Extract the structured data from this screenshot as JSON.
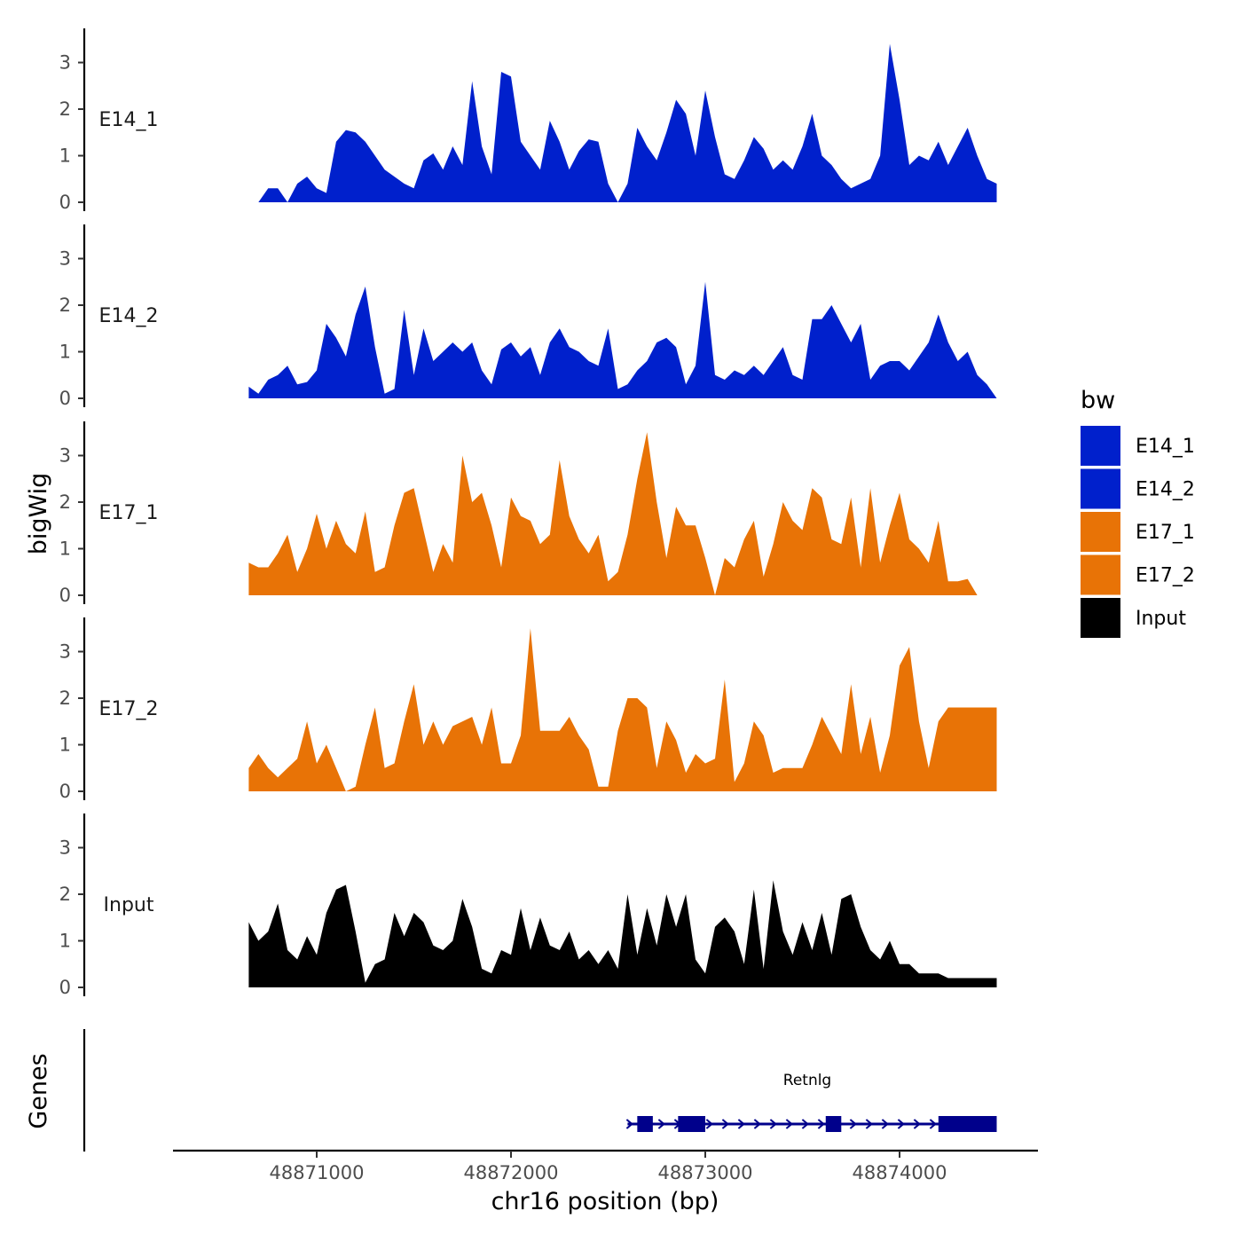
{
  "chart_data": {
    "type": "area",
    "ylabel": "bigWig",
    "xlabel": "chr16 position (bp)",
    "xlim": [
      48870400,
      48874700
    ],
    "ylim": [
      0,
      3.6
    ],
    "y_ticks": [
      "0",
      "1",
      "2",
      "3"
    ],
    "x_ticks": [
      "48871000",
      "48872000",
      "48873000",
      "48874000"
    ],
    "legend_title": "bw",
    "legend_position": "right",
    "tracks": [
      {
        "name": "E14_1",
        "color": "#0020CC",
        "x": [
          48870700,
          48870750,
          48870800,
          48870850,
          48870900,
          48870950,
          48871000,
          48871050,
          48871100,
          48871150,
          48871200,
          48871250,
          48871300,
          48871350,
          48871400,
          48871450,
          48871500,
          48871550,
          48871600,
          48871650,
          48871700,
          48871750,
          48871800,
          48871850,
          48871900,
          48871950,
          48872000,
          48872050,
          48872100,
          48872150,
          48872200,
          48872250,
          48872300,
          48872350,
          48872400,
          48872450,
          48872500,
          48872550,
          48872600,
          48872650,
          48872700,
          48872750,
          48872800,
          48872850,
          48872900,
          48872950,
          48873000,
          48873050,
          48873100,
          48873150,
          48873200,
          48873250,
          48873300,
          48873350,
          48873400,
          48873450,
          48873500,
          48873550,
          48873600,
          48873650,
          48873700,
          48873750,
          48873800,
          48873850,
          48873900,
          48873950,
          48874000,
          48874050,
          48874100,
          48874150,
          48874200,
          48874250,
          48874300,
          48874350,
          48874400,
          48874450,
          48874500
        ],
        "values": [
          0.0,
          0.3,
          0.3,
          0.0,
          0.4,
          0.55,
          0.3,
          0.2,
          1.3,
          1.55,
          1.5,
          1.3,
          1.0,
          0.7,
          0.55,
          0.4,
          0.3,
          0.9,
          1.05,
          0.7,
          1.2,
          0.8,
          2.6,
          1.2,
          0.6,
          2.8,
          2.7,
          1.3,
          1.0,
          0.7,
          1.75,
          1.3,
          0.7,
          1.1,
          1.35,
          1.3,
          0.4,
          0.0,
          0.4,
          1.6,
          1.2,
          0.9,
          1.5,
          2.2,
          1.9,
          1.0,
          2.4,
          1.4,
          0.6,
          0.5,
          0.9,
          1.4,
          1.15,
          0.7,
          0.9,
          0.7,
          1.2,
          1.9,
          1.0,
          0.8,
          0.5,
          0.3,
          0.4,
          0.5,
          1.0,
          3.4,
          2.2,
          0.8,
          1.0,
          0.9,
          1.3,
          0.8,
          1.2,
          1.6,
          1.0,
          0.5,
          0.4
        ]
      },
      {
        "name": "E14_2",
        "color": "#0020CC",
        "x": [
          48870650,
          48870700,
          48870750,
          48870800,
          48870850,
          48870900,
          48870950,
          48871000,
          48871050,
          48871100,
          48871150,
          48871200,
          48871250,
          48871300,
          48871350,
          48871400,
          48871450,
          48871500,
          48871550,
          48871600,
          48871650,
          48871700,
          48871750,
          48871800,
          48871850,
          48871900,
          48871950,
          48872000,
          48872050,
          48872100,
          48872150,
          48872200,
          48872250,
          48872300,
          48872350,
          48872400,
          48872450,
          48872500,
          48872550,
          48872600,
          48872650,
          48872700,
          48872750,
          48872800,
          48872850,
          48872900,
          48872950,
          48873000,
          48873050,
          48873100,
          48873150,
          48873200,
          48873250,
          48873300,
          48873350,
          48873400,
          48873450,
          48873500,
          48873550,
          48873600,
          48873650,
          48873700,
          48873750,
          48873800,
          48873850,
          48873900,
          48873950,
          48874000,
          48874050,
          48874100,
          48874150,
          48874200,
          48874250,
          48874300,
          48874350,
          48874400,
          48874450,
          48874500
        ],
        "values": [
          0.25,
          0.1,
          0.4,
          0.5,
          0.7,
          0.3,
          0.35,
          0.6,
          1.6,
          1.3,
          0.9,
          1.8,
          2.4,
          1.1,
          0.1,
          0.2,
          1.9,
          0.5,
          1.5,
          0.8,
          1.0,
          1.2,
          1.0,
          1.2,
          0.6,
          0.3,
          1.05,
          1.2,
          0.9,
          1.1,
          0.5,
          1.2,
          1.5,
          1.1,
          1.0,
          0.8,
          0.7,
          1.5,
          0.2,
          0.3,
          0.6,
          0.8,
          1.2,
          1.3,
          1.1,
          0.3,
          0.7,
          2.5,
          0.5,
          0.4,
          0.6,
          0.5,
          0.7,
          0.5,
          0.8,
          1.1,
          0.5,
          0.4,
          1.7,
          1.7,
          2.0,
          1.6,
          1.2,
          1.6,
          0.4,
          0.7,
          0.8,
          0.8,
          0.6,
          0.9,
          1.2,
          1.8,
          1.2,
          0.8,
          1.0,
          0.5,
          0.3,
          0.0
        ]
      },
      {
        "name": "E17_1",
        "color": "#E87306",
        "x": [
          48870650,
          48870700,
          48870750,
          48870800,
          48870850,
          48870900,
          48870950,
          48871000,
          48871050,
          48871100,
          48871150,
          48871200,
          48871250,
          48871300,
          48871350,
          48871400,
          48871450,
          48871500,
          48871550,
          48871600,
          48871650,
          48871700,
          48871750,
          48871800,
          48871850,
          48871900,
          48871950,
          48872000,
          48872050,
          48872100,
          48872150,
          48872200,
          48872250,
          48872300,
          48872350,
          48872400,
          48872450,
          48872500,
          48872550,
          48872600,
          48872650,
          48872700,
          48872750,
          48872800,
          48872850,
          48872900,
          48872950,
          48873000,
          48873050,
          48873100,
          48873150,
          48873200,
          48873250,
          48873300,
          48873350,
          48873400,
          48873450,
          48873500,
          48873550,
          48873600,
          48873650,
          48873700,
          48873750,
          48873800,
          48873850,
          48873900,
          48873950,
          48874000,
          48874050,
          48874100,
          48874150,
          48874200,
          48874250,
          48874300,
          48874350,
          48874400,
          48874450,
          48874500
        ],
        "values": [
          0.7,
          0.6,
          0.6,
          0.9,
          1.3,
          0.5,
          1.0,
          1.75,
          1.0,
          1.6,
          1.1,
          0.9,
          1.8,
          0.5,
          0.6,
          1.5,
          2.2,
          2.3,
          1.4,
          0.5,
          1.1,
          0.7,
          3.0,
          2.0,
          2.2,
          1.5,
          0.6,
          2.1,
          1.7,
          1.6,
          1.1,
          1.3,
          2.9,
          1.7,
          1.2,
          0.9,
          1.3,
          0.3,
          0.5,
          1.3,
          2.5,
          3.5,
          2.0,
          0.8,
          1.9,
          1.5,
          1.5,
          0.8,
          0.0,
          0.8,
          0.6,
          1.2,
          1.6,
          0.4,
          1.1,
          2.0,
          1.6,
          1.4,
          2.3,
          2.1,
          1.2,
          1.1,
          2.1,
          0.6,
          2.3,
          0.7,
          1.5,
          2.2,
          1.2,
          1.0,
          0.7,
          1.6,
          0.3,
          0.3,
          0.35,
          0.0,
          0.0,
          0.0
        ]
      },
      {
        "name": "E17_2",
        "color": "#E87306",
        "x": [
          48870650,
          48870700,
          48870750,
          48870800,
          48870850,
          48870900,
          48870950,
          48871000,
          48871050,
          48871100,
          48871150,
          48871200,
          48871250,
          48871300,
          48871350,
          48871400,
          48871450,
          48871500,
          48871550,
          48871600,
          48871650,
          48871700,
          48871750,
          48871800,
          48871850,
          48871900,
          48871950,
          48872000,
          48872050,
          48872100,
          48872150,
          48872200,
          48872250,
          48872300,
          48872350,
          48872400,
          48872450,
          48872500,
          48872550,
          48872600,
          48872650,
          48872700,
          48872750,
          48872800,
          48872850,
          48872900,
          48872950,
          48873000,
          48873050,
          48873100,
          48873150,
          48873200,
          48873250,
          48873300,
          48873350,
          48873400,
          48873450,
          48873500,
          48873550,
          48873600,
          48873650,
          48873700,
          48873750,
          48873800,
          48873850,
          48873900,
          48873950,
          48874000,
          48874050,
          48874100,
          48874150,
          48874200,
          48874250,
          48874300,
          48874350,
          48874400,
          48874450,
          48874500
        ],
        "values": [
          0.5,
          0.8,
          0.5,
          0.3,
          0.5,
          0.7,
          1.5,
          0.6,
          1.0,
          0.5,
          0.0,
          0.1,
          1.0,
          1.8,
          0.5,
          0.6,
          1.5,
          2.3,
          1.0,
          1.5,
          1.0,
          1.4,
          1.5,
          1.6,
          1.0,
          1.8,
          0.6,
          0.6,
          1.2,
          3.5,
          1.3,
          1.3,
          1.3,
          1.6,
          1.2,
          0.9,
          0.1,
          0.1,
          1.3,
          2.0,
          2.0,
          1.8,
          0.5,
          1.5,
          1.1,
          0.4,
          0.8,
          0.6,
          0.7,
          2.4,
          0.2,
          0.6,
          1.5,
          1.2,
          0.4,
          0.5,
          0.5,
          0.5,
          1.0,
          1.6,
          1.2,
          0.8,
          2.3,
          0.8,
          1.6,
          0.4,
          1.2,
          2.7,
          3.1,
          1.5,
          0.5,
          1.5,
          1.8,
          1.8,
          1.8,
          1.8,
          1.8,
          1.8
        ]
      },
      {
        "name": "Input",
        "color": "#000000",
        "x": [
          48870650,
          48870700,
          48870750,
          48870800,
          48870850,
          48870900,
          48870950,
          48871000,
          48871050,
          48871100,
          48871150,
          48871200,
          48871250,
          48871300,
          48871350,
          48871400,
          48871450,
          48871500,
          48871550,
          48871600,
          48871650,
          48871700,
          48871750,
          48871800,
          48871850,
          48871900,
          48871950,
          48872000,
          48872050,
          48872100,
          48872150,
          48872200,
          48872250,
          48872300,
          48872350,
          48872400,
          48872450,
          48872500,
          48872550,
          48872600,
          48872650,
          48872700,
          48872750,
          48872800,
          48872850,
          48872900,
          48872950,
          48873000,
          48873050,
          48873100,
          48873150,
          48873200,
          48873250,
          48873300,
          48873350,
          48873400,
          48873450,
          48873500,
          48873550,
          48873600,
          48873650,
          48873700,
          48873750,
          48873800,
          48873850,
          48873900,
          48873950,
          48874000,
          48874050,
          48874100,
          48874150,
          48874200,
          48874250,
          48874300,
          48874350,
          48874400,
          48874450,
          48874500
        ],
        "values": [
          1.4,
          1.0,
          1.2,
          1.8,
          0.8,
          0.6,
          1.1,
          0.7,
          1.6,
          2.1,
          2.2,
          1.2,
          0.1,
          0.5,
          0.6,
          1.6,
          1.1,
          1.6,
          1.4,
          0.9,
          0.8,
          1.0,
          1.9,
          1.3,
          0.4,
          0.3,
          0.8,
          0.7,
          1.7,
          0.8,
          1.5,
          0.9,
          0.8,
          1.2,
          0.6,
          0.8,
          0.5,
          0.8,
          0.4,
          2.0,
          0.7,
          1.7,
          0.9,
          2.0,
          1.3,
          2.0,
          0.6,
          0.3,
          1.3,
          1.5,
          1.2,
          0.5,
          2.1,
          0.4,
          2.3,
          1.2,
          0.7,
          1.4,
          0.8,
          1.6,
          0.7,
          1.9,
          2.0,
          1.3,
          0.8,
          0.6,
          1.0,
          0.5,
          0.5,
          0.3,
          0.3,
          0.3,
          0.2,
          0.2,
          0.2,
          0.2,
          0.2,
          0.2
        ]
      }
    ],
    "genes_track": {
      "title": "Genes",
      "gene_name": "Retnlg",
      "color": "#00008B",
      "start": 48872600,
      "end": 48874500,
      "strand": "+",
      "exons": [
        [
          48872650,
          48872730
        ],
        [
          48872860,
          48873000
        ],
        [
          48873620,
          48873700
        ],
        [
          48874200,
          48874500
        ]
      ]
    },
    "legend": [
      {
        "label": "E14_1",
        "color": "#0020CC"
      },
      {
        "label": "E14_2",
        "color": "#0020CC"
      },
      {
        "label": "E17_1",
        "color": "#E87306"
      },
      {
        "label": "E17_2",
        "color": "#E87306"
      },
      {
        "label": "Input",
        "color": "#000000"
      }
    ]
  }
}
